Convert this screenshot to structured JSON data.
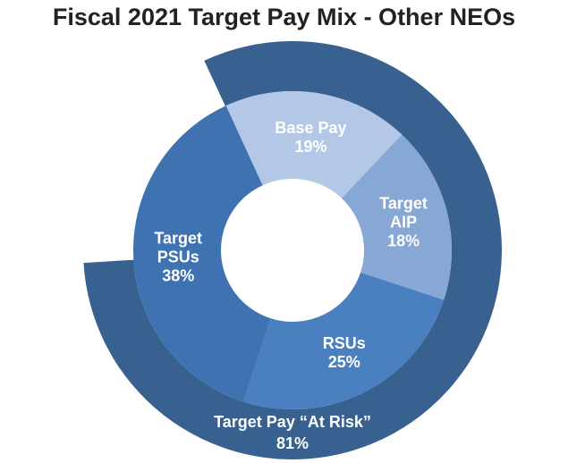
{
  "chart_data": {
    "type": "pie",
    "title": "Fiscal 2021 Target Pay Mix - Other NEOs",
    "inner_ring": {
      "segments": [
        {
          "name": "Base Pay",
          "label_lines": [
            "Base Pay"
          ],
          "value": 19,
          "value_text": "19%",
          "color": "#b3c8e6"
        },
        {
          "name": "Target AIP",
          "label_lines": [
            "Target",
            "AIP"
          ],
          "value": 18,
          "value_text": "18%",
          "color": "#87a7d5"
        },
        {
          "name": "RSUs",
          "label_lines": [
            "RSUs"
          ],
          "value": 25,
          "value_text": "25%",
          "color": "#4a7fc0"
        },
        {
          "name": "Target PSUs",
          "label_lines": [
            "Target",
            "PSUs"
          ],
          "value": 38,
          "value_text": "38%",
          "color": "#3f72b1"
        }
      ]
    },
    "outer_ring": {
      "segments": [
        {
          "name": "Target Pay “At Risk”",
          "label_lines": [
            "Target Pay “At Risk”"
          ],
          "value": 81,
          "value_text": "81%",
          "color": "#386190"
        }
      ]
    }
  }
}
